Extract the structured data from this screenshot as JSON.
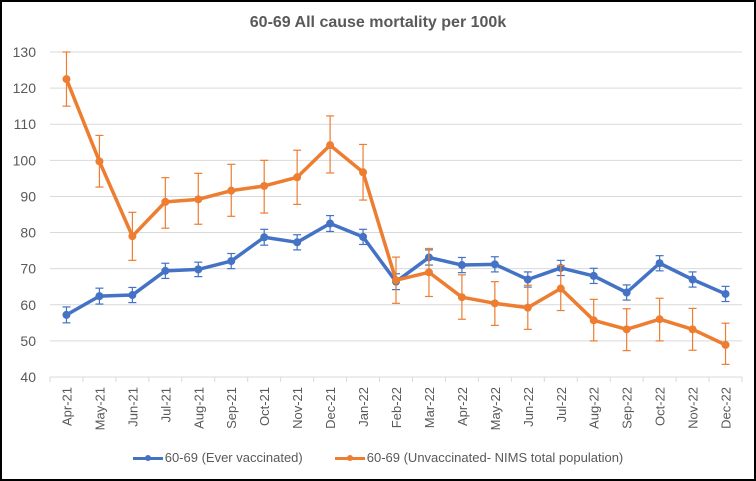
{
  "chart_data": {
    "type": "line",
    "title": "60-69 All cause mortality per 100k",
    "xlabel": "",
    "ylabel": "",
    "ylim": [
      40,
      130
    ],
    "yticks": [
      40,
      50,
      60,
      70,
      80,
      90,
      100,
      110,
      120,
      130
    ],
    "grid": true,
    "legend_position": "bottom",
    "categories": [
      "Apr-21",
      "May-21",
      "Jun-21",
      "Jul-21",
      "Aug-21",
      "Sep-21",
      "Oct-21",
      "Nov-21",
      "Dec-21",
      "Jan-22",
      "Feb-22",
      "Mar-22",
      "Apr-22",
      "May-22",
      "Jun-22",
      "Jul-22",
      "Aug-22",
      "Sep-22",
      "Oct-22",
      "Nov-22",
      "Dec-22"
    ],
    "series": [
      {
        "name": "60-69 (Ever vaccinated)",
        "color": "#4472C4",
        "values": [
          57.2,
          62.4,
          62.7,
          69.4,
          69.8,
          72.1,
          78.7,
          77.3,
          82.5,
          78.8,
          66.4,
          73.1,
          71.0,
          71.2,
          67.0,
          70.2,
          68.0,
          63.4,
          71.5,
          67.0,
          63.0
        ],
        "error_low": [
          55.0,
          60.2,
          60.6,
          67.3,
          67.8,
          70.0,
          76.5,
          75.2,
          80.3,
          76.7,
          64.2,
          71.0,
          68.9,
          69.1,
          64.9,
          68.1,
          65.9,
          61.3,
          69.4,
          64.9,
          60.9
        ],
        "error_high": [
          59.4,
          64.6,
          64.8,
          71.5,
          71.8,
          74.2,
          80.9,
          79.4,
          84.7,
          80.9,
          68.6,
          75.2,
          73.1,
          73.3,
          69.1,
          72.3,
          70.1,
          65.5,
          73.6,
          69.1,
          65.1
        ]
      },
      {
        "name": "60-69 (Unvaccinated- NIMS total population)",
        "color": "#ED7D31",
        "values": [
          122.5,
          99.7,
          79.0,
          88.5,
          89.2,
          91.6,
          92.9,
          95.3,
          104.2,
          96.7,
          66.8,
          69.0,
          62.1,
          60.4,
          59.2,
          64.5,
          55.7,
          53.2,
          56.0,
          53.2,
          48.9
        ],
        "error_low": [
          115.0,
          92.6,
          72.3,
          81.2,
          82.3,
          84.5,
          85.4,
          87.8,
          96.5,
          89.0,
          60.4,
          62.3,
          56.0,
          54.3,
          53.2,
          58.4,
          50.0,
          47.3,
          50.0,
          47.4,
          43.5
        ],
        "error_high": [
          130.0,
          106.9,
          85.6,
          95.2,
          96.4,
          98.9,
          100.0,
          102.8,
          112.3,
          104.4,
          73.2,
          75.6,
          68.3,
          66.4,
          65.4,
          70.9,
          61.5,
          58.9,
          61.8,
          59.0,
          54.9
        ]
      }
    ]
  }
}
